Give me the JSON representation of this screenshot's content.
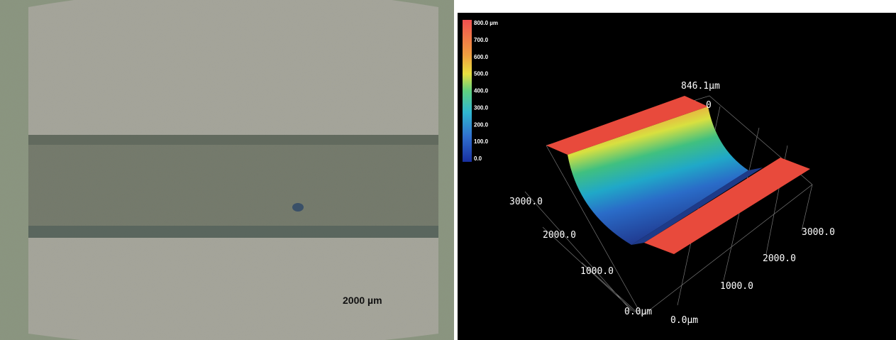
{
  "microscope_image": {
    "scale_label": "2000 µm"
  },
  "surface_plot": {
    "colorbar_labels": [
      "800.0 µm",
      "700.0",
      "600.0",
      "500.0",
      "400.0",
      "300.0",
      "200.0",
      "100.0",
      "0.0"
    ],
    "peak_label": "846.1µm",
    "peak_zero": "0",
    "left_axis_labels": [
      "3000.0",
      "2000.0",
      "1000.0",
      "0.0µm"
    ],
    "right_axis_labels": [
      "0.0µm",
      "1000.0",
      "2000.0",
      "3000.0"
    ]
  }
}
